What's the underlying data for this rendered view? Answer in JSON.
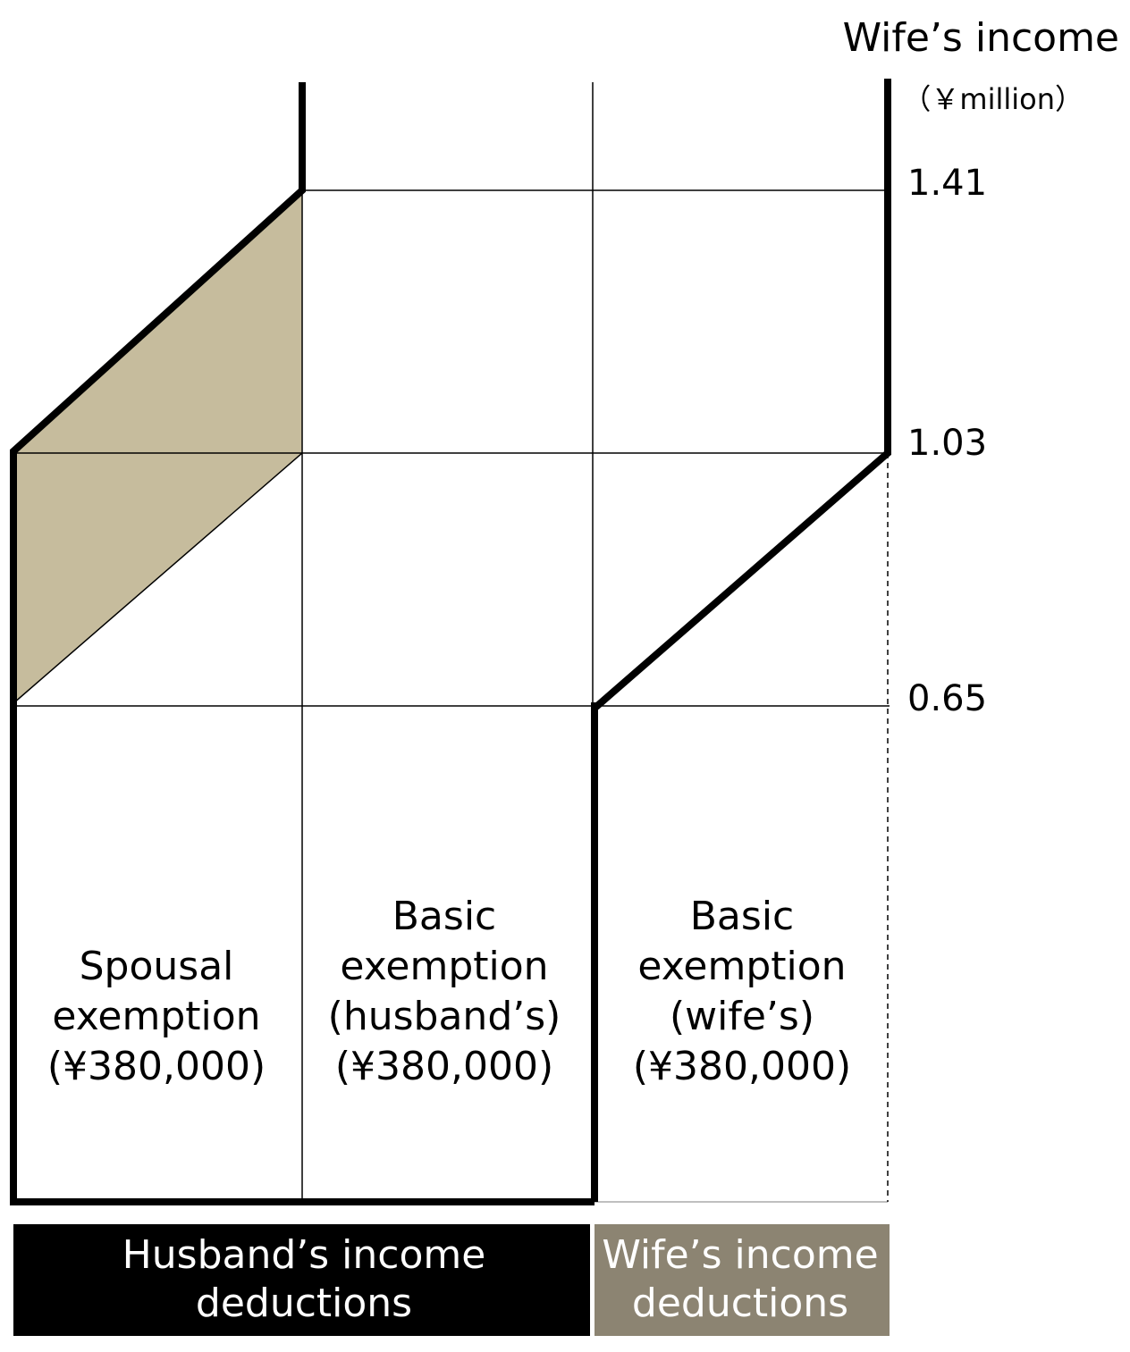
{
  "header": {
    "title": "Wife’s income",
    "unit": "（￥million）"
  },
  "axis": {
    "ticks": [
      1.41,
      1.03,
      0.65
    ]
  },
  "cells": [
    {
      "lines": [
        "Spousal",
        "exemption",
        "(¥380,000)"
      ]
    },
    {
      "lines": [
        "Basic",
        "exemption",
        "(husband’s)",
        "(¥380,000)"
      ]
    },
    {
      "lines": [
        "Basic",
        "exemption",
        "(wife’s)",
        "(¥380,000)"
      ]
    }
  ],
  "footer": {
    "husband": [
      "Husband’s income",
      "deductions"
    ],
    "wife": [
      "Wife’s income",
      "deductions"
    ]
  }
}
